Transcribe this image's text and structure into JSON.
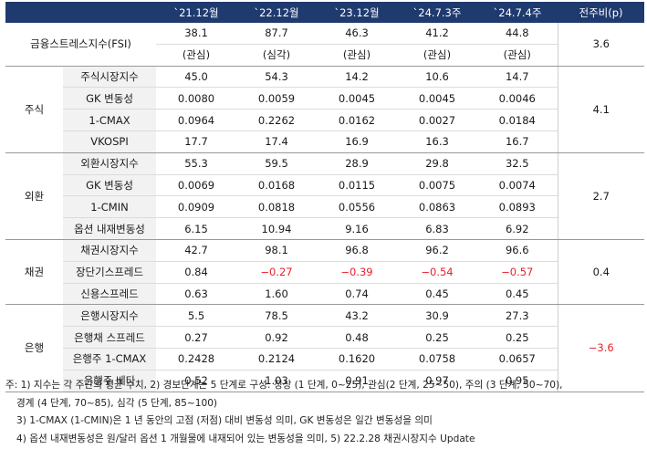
{
  "header": {
    "periods": [
      "`21.12월",
      "`22.12월",
      "`23.12월",
      "`24.7.3주",
      "`24.7.4주"
    ],
    "change": "전주비(p)"
  },
  "fsi": {
    "label": "금융스트레스지수(FSI)",
    "values": [
      "38.1",
      "87.7",
      "46.3",
      "41.2",
      "44.8"
    ],
    "stages": [
      "(관심)",
      "(심각)",
      "(관심)",
      "(관심)",
      "(관심)"
    ],
    "change": "3.6"
  },
  "groups": [
    {
      "name": "주식",
      "change": "4.1",
      "rows": [
        {
          "label": "주식시장지수",
          "values": [
            "45.0",
            "54.3",
            "14.2",
            "10.6",
            "14.7"
          ]
        },
        {
          "label": "GK 변동성",
          "values": [
            "0.0080",
            "0.0059",
            "0.0045",
            "0.0045",
            "0.0046"
          ]
        },
        {
          "label": "1-CMAX",
          "values": [
            "0.0964",
            "0.2262",
            "0.0162",
            "0.0027",
            "0.0184"
          ]
        },
        {
          "label": "VKOSPI",
          "values": [
            "17.7",
            "17.4",
            "16.9",
            "16.3",
            "16.7"
          ]
        }
      ]
    },
    {
      "name": "외환",
      "change": "2.7",
      "rows": [
        {
          "label": "외환시장지수",
          "values": [
            "55.3",
            "59.5",
            "28.9",
            "29.8",
            "32.5"
          ]
        },
        {
          "label": "GK 변동성",
          "values": [
            "0.0069",
            "0.0168",
            "0.0115",
            "0.0075",
            "0.0074"
          ]
        },
        {
          "label": "1-CMIN",
          "values": [
            "0.0909",
            "0.0818",
            "0.0556",
            "0.0863",
            "0.0893"
          ]
        },
        {
          "label": "옵션 내재변동성",
          "values": [
            "6.15",
            "10.94",
            "9.16",
            "6.83",
            "6.92"
          ]
        }
      ]
    },
    {
      "name": "채권",
      "change": "0.4",
      "rows": [
        {
          "label": "채권시장지수",
          "values": [
            "42.7",
            "98.1",
            "96.8",
            "96.2",
            "96.6"
          ]
        },
        {
          "label": "장단기스프레드",
          "values": [
            "0.84",
            "−0.27",
            "−0.39",
            "−0.54",
            "−0.57"
          ]
        },
        {
          "label": "신용스프레드",
          "values": [
            "0.63",
            "1.60",
            "0.74",
            "0.45",
            "0.45"
          ]
        }
      ]
    },
    {
      "name": "은행",
      "change": "−3.6",
      "rows": [
        {
          "label": "은행시장지수",
          "values": [
            "5.5",
            "78.5",
            "43.2",
            "30.9",
            "27.3"
          ]
        },
        {
          "label": "은행채 스프레드",
          "values": [
            "0.27",
            "0.92",
            "0.48",
            "0.25",
            "0.25"
          ]
        },
        {
          "label": "은행주 1-CMAX",
          "values": [
            "0.2428",
            "0.2124",
            "0.1620",
            "0.0758",
            "0.0657"
          ]
        },
        {
          "label": "은행주 베타",
          "values": [
            "0.52",
            "1.03",
            "0.91",
            "0.97",
            "0.95"
          ]
        }
      ]
    }
  ],
  "colors": {
    "header_bg": "#1f3a6e",
    "negative": "#e8212b",
    "shade": "#f2f2f2"
  },
  "notes": [
    "주: 1) 지수는 각 주간의 평균 수치, 2) 경보단계는 5 단계로 구성: 정상 (1 단계, 0~25), 관심(2 단계, 25~50), 주의 (3 단계, 50~70),",
    "경계 (4 단계, 70~85), 심각 (5 단계, 85~100)",
    "3) 1-CMAX (1-CMIN)은 1 년 동안의 고점 (저점) 대비 변동성 의미, GK 변동성은 일간 변동성을 의미",
    "4) 옵션 내재변동성은 원/달러 옵션 1 개월물에 내재되어 있는 변동성을 의미, 5) 22.2.28 채권시장지수 Update"
  ]
}
